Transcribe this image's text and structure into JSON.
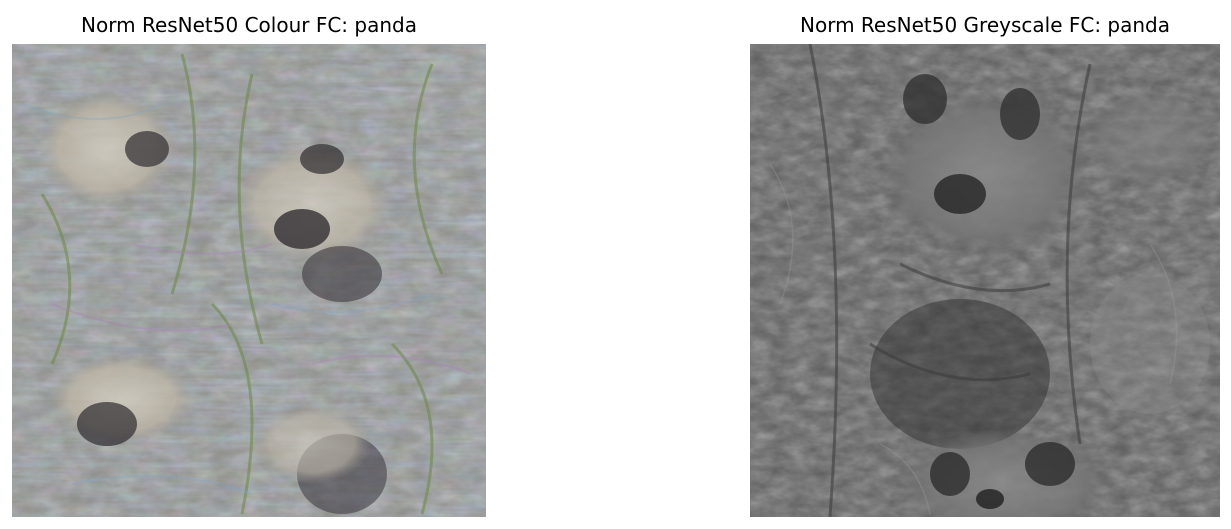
{
  "figure": {
    "panels": [
      {
        "title": "Norm ResNet50 Colour FC: panda",
        "image_description": "colourful feature visualization texture with multiple panda faces, bamboo leaves and rainbow-tinted fringes",
        "palette": [
          "#8c8a86",
          "#6f7c5b",
          "#a197b0",
          "#7d8ea6",
          "#c2b7a7",
          "#3f3a3c",
          "#d9d3c6"
        ]
      },
      {
        "title": "Norm ResNet50 Greyscale FC: panda",
        "image_description": "greyscale feature visualization texture with panda faces, ears and bamboo-like strokes",
        "palette": [
          "#5b5b5b",
          "#6b6b6b",
          "#7c7c7c",
          "#2f2f2f",
          "#9a9a9a",
          "#444444"
        ]
      }
    ]
  }
}
